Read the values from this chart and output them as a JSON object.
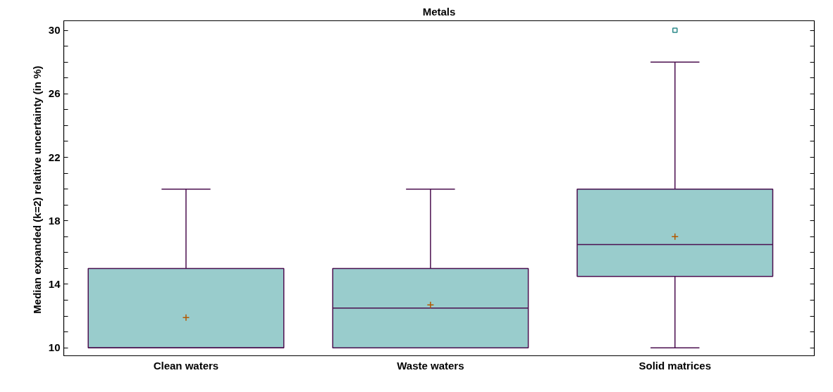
{
  "chart_data": {
    "type": "box",
    "title": "Metals",
    "ylabel": "Median expanded (k=2)  relative uncertainty (in %)",
    "categories": [
      "Clean waters",
      "Waste waters",
      "Solid matrices"
    ],
    "color": "#99cccc",
    "boxes": [
      {
        "low": 10,
        "q1": 10,
        "median": 10,
        "q3": 15,
        "high": 20,
        "mean": 11.9
      },
      {
        "low": 10,
        "q1": 10,
        "median": 12.5,
        "q3": 15,
        "high": 20,
        "mean": 12.7
      },
      {
        "low": 10,
        "q1": 14.5,
        "median": 16.5,
        "q3": 20,
        "high": 28,
        "mean": 17,
        "outliers": [
          30
        ]
      }
    ],
    "ylim": [
      9.5,
      30.6
    ],
    "yticks": [
      10,
      {
        "value": 11,
        "label": null
      },
      {
        "value": 12,
        "label": null
      },
      {
        "value": 13,
        "label": null
      },
      14,
      {
        "value": 15,
        "label": null
      },
      {
        "value": 16,
        "label": null
      },
      {
        "value": 17,
        "label": null
      },
      18,
      {
        "value": 19,
        "label": null
      },
      {
        "value": 20,
        "label": null
      },
      {
        "value": 21,
        "label": null
      },
      22,
      {
        "value": 23,
        "label": null
      },
      {
        "value": 24,
        "label": null
      },
      {
        "value": 25,
        "label": null
      },
      26,
      {
        "value": 27,
        "label": null
      },
      {
        "value": 28,
        "label": null
      },
      {
        "value": 29,
        "label": null
      },
      30
    ],
    "grid": false
  }
}
